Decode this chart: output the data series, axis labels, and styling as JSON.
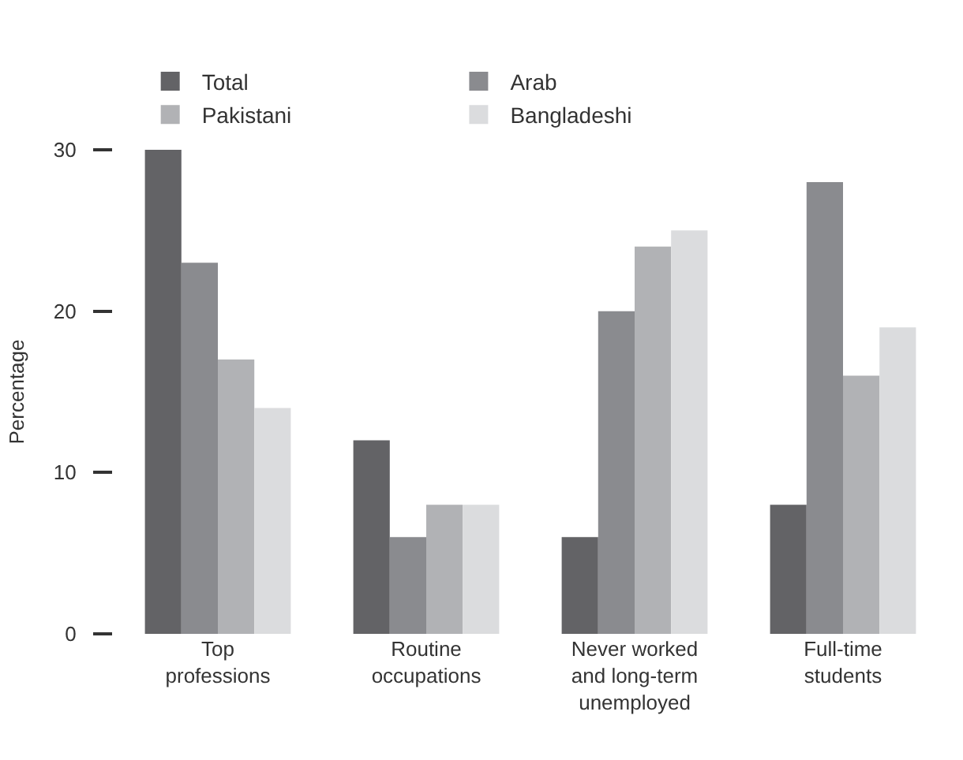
{
  "chart_data": {
    "type": "bar",
    "ylabel": "Percentage",
    "categories": [
      "Top\nprofessions",
      "Routine\noccupations",
      "Never worked\nand long-term\nunemployed",
      "Full-time\nstudents"
    ],
    "series": [
      {
        "name": "Total",
        "color": "#636366",
        "values": [
          30,
          12,
          6,
          8
        ]
      },
      {
        "name": "Arab",
        "color": "#8a8b8f",
        "values": [
          23,
          6,
          20,
          28
        ]
      },
      {
        "name": "Pakistani",
        "color": "#b1b2b5",
        "values": [
          17,
          8,
          24,
          16
        ]
      },
      {
        "name": "Bangladeshi",
        "color": "#dbdcde",
        "values": [
          14,
          8,
          25,
          19
        ]
      }
    ],
    "ylim": [
      0,
      30
    ],
    "yticks": [
      0,
      10,
      20,
      30
    ],
    "legend": "top"
  }
}
